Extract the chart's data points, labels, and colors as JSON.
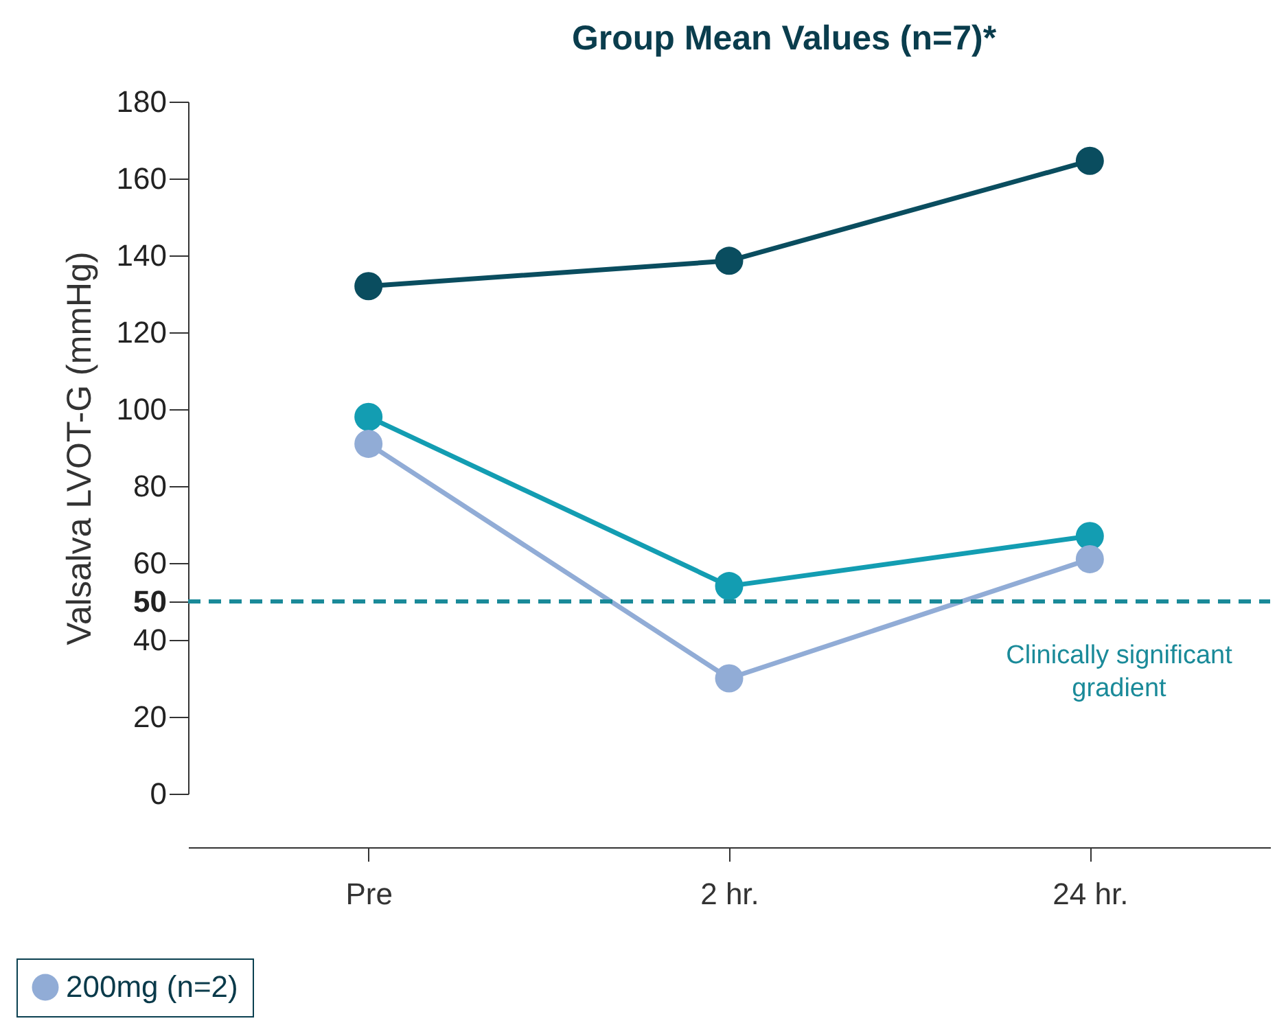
{
  "chart_data": {
    "type": "line",
    "title": "Group Mean Values (n=7)*",
    "ylabel": "Valsalva LVOT-G (mmHg)",
    "categories": [
      "Pre",
      "2 hr.",
      "24 hr."
    ],
    "series": [
      {
        "color": "#0a4d5f",
        "values": [
          132,
          138.6,
          164.6
        ]
      },
      {
        "color": "#139db2",
        "values": [
          98,
          54,
          67
        ]
      },
      {
        "name": "200mg (n=2)",
        "color": "#91acd6",
        "values": [
          91,
          30,
          61
        ]
      }
    ],
    "ylim": [
      0,
      180
    ],
    "yticks": [
      0,
      20,
      40,
      50,
      60,
      80,
      100,
      120,
      140,
      160,
      180
    ],
    "ref_lines": [
      {
        "axis": "y",
        "value": 50,
        "label": "Clinically significant\ngradient",
        "color": "#1a8a99",
        "line_style": "dashed"
      }
    ],
    "grid": false,
    "legend": "bottom left",
    "marker": "circle",
    "line_style": "solid"
  }
}
